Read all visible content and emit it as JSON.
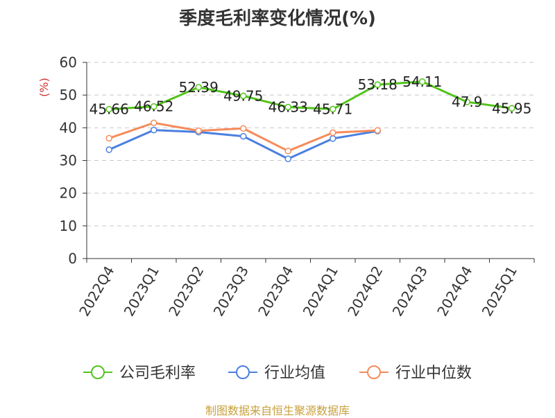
{
  "chart_data": {
    "type": "line",
    "title": "季度毛利率变化情况(%)",
    "ylabel": "(%)",
    "xlabel": "",
    "categories": [
      "2022Q4",
      "2023Q1",
      "2023Q2",
      "2023Q3",
      "2023Q4",
      "2024Q1",
      "2024Q2",
      "2024Q3",
      "2024Q4",
      "2025Q1"
    ],
    "ylim": [
      0,
      60
    ],
    "yticks": [
      0,
      10,
      20,
      30,
      40,
      50,
      60
    ],
    "grid": true,
    "legend_position": "bottom",
    "series": [
      {
        "name": "公司毛利率",
        "color": "#52c41a",
        "values": [
          45.66,
          46.52,
          52.39,
          49.75,
          46.33,
          45.71,
          53.18,
          54.11,
          47.9,
          45.95
        ],
        "labels": [
          "45.66",
          "46.52",
          "52.39",
          "49.75",
          "46.33",
          "45.71",
          "53.18",
          "54.11",
          "47.9",
          "45.95"
        ]
      },
      {
        "name": "行业均值",
        "color": "#4a7fe0",
        "values": [
          33.3,
          39.3,
          38.7,
          37.4,
          30.5,
          36.7,
          39.0,
          null,
          null,
          null
        ]
      },
      {
        "name": "行业中位数",
        "color": "#f58b5a",
        "values": [
          36.8,
          41.5,
          39.1,
          39.8,
          32.9,
          38.5,
          39.2,
          null,
          null,
          null
        ]
      }
    ],
    "source": "制图数据来自恒生聚源数据库"
  }
}
